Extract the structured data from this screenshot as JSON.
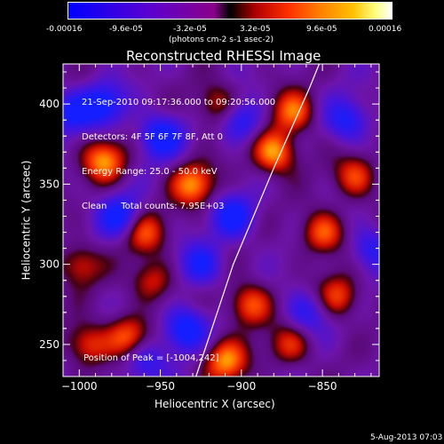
{
  "colorbar": {
    "tick_labels": [
      "-0.00016",
      "-9.6e-05",
      "-3.2e-05",
      "3.2e-05",
      "9.6e-05",
      "0.00016"
    ],
    "units_text": "(photons cm-2 s-1 asec-2)",
    "colors": [
      "#0000ff",
      "#6b00c9",
      "#b000a0",
      "#ff2000",
      "#ff9000",
      "#ffffff"
    ]
  },
  "chart_data": {
    "type": "heatmap",
    "title": "Reconstructed RHESSI Image",
    "xlabel": "Heliocentric X (arcsec)",
    "ylabel": "Heliocentric Y (arcsec)",
    "xlim": [
      -1010,
      -815
    ],
    "ylim": [
      230,
      425
    ],
    "xticks": [
      -1000,
      -950,
      -900,
      -850
    ],
    "yticks": [
      250,
      300,
      350,
      400
    ],
    "xtick_labels": [
      "−1000",
      "−950",
      "−900",
      "−850"
    ],
    "ytick_labels": [
      "250",
      "300",
      "350",
      "400"
    ],
    "value_range": [
      -0.00016,
      0.00016
    ],
    "limb_curve": [
      [
        -928,
        230
      ],
      [
        -905,
        300
      ],
      [
        -880,
        360
      ],
      [
        -858,
        410
      ],
      [
        -852,
        425
      ]
    ],
    "peak": [
      -1004,
      242
    ],
    "hot_spots": [
      [
        -985,
        365,
        0.9
      ],
      [
        -970,
        255,
        0.8
      ],
      [
        -960,
        320,
        0.7
      ],
      [
        -955,
        290,
        0.6
      ],
      [
        -930,
        350,
        0.9
      ],
      [
        -910,
        240,
        0.9
      ],
      [
        -895,
        275,
        0.8
      ],
      [
        -880,
        370,
        1.0
      ],
      [
        -868,
        395,
        0.8
      ],
      [
        -850,
        320,
        0.8
      ],
      [
        -840,
        280,
        0.7
      ],
      [
        -830,
        355,
        0.7
      ],
      [
        -1000,
        300,
        0.6
      ],
      [
        -995,
        250,
        0.7
      ],
      [
        -915,
        400,
        0.6
      ],
      [
        -870,
        250,
        0.6
      ]
    ],
    "cold_spots": [
      [
        -985,
        400,
        0.8
      ],
      [
        -950,
        380,
        0.9
      ],
      [
        -975,
        330,
        0.8
      ],
      [
        -925,
        300,
        0.7
      ],
      [
        -935,
        260,
        0.9
      ],
      [
        -905,
        330,
        0.8
      ],
      [
        -900,
        390,
        0.7
      ],
      [
        -860,
        270,
        0.6
      ],
      [
        -835,
        390,
        0.7
      ],
      [
        -960,
        240,
        0.6
      ],
      [
        -1005,
        395,
        0.7
      ],
      [
        -820,
        310,
        0.6
      ]
    ]
  },
  "info_lines": [
    "21-Sep-2010 09:17:36.000 to 09:20:56.000",
    "Detectors: 4F 5F 6F 7F 8F, Att 0",
    "Energy Range: 25.0 - 50.0 keV",
    "Clean     Total counts: 7.95E+03"
  ],
  "peak_label": "Position of Peak = [-1004,242]",
  "date_stamp": "5-Aug-2013 07:03"
}
